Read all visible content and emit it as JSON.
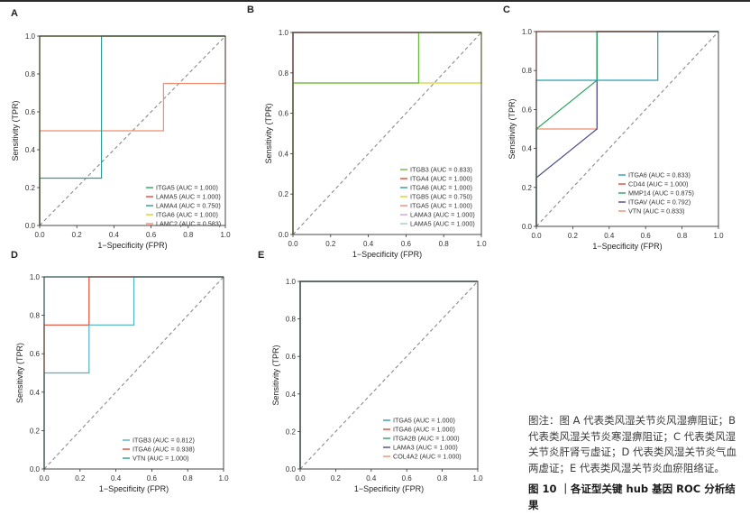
{
  "chart_data": [
    {
      "type": "line",
      "panel_label": "A",
      "xlabel": "1−Specificity (FPR)",
      "ylabel": "Sensitivity (TPR)",
      "xlim": [
        0,
        1
      ],
      "ylim": [
        0,
        1
      ],
      "x_ticks": [
        "0.0",
        "0.2",
        "0.4",
        "0.6",
        "0.8",
        "1.0"
      ],
      "y_ticks": [
        "0.0",
        "0.2",
        "0.4",
        "0.6",
        "0.8",
        "1.0"
      ],
      "reference_line": [
        [
          0,
          0
        ],
        [
          1,
          1
        ]
      ],
      "legend_position": "bottom-right",
      "series": [
        {
          "name": "ITGA5 (AUC = 1.000)",
          "color": "#2ca25f",
          "points": [
            [
              0,
              0
            ],
            [
              0,
              1
            ],
            [
              1,
              1
            ]
          ]
        },
        {
          "name": "LAMA5 (AUC = 1.000)",
          "color": "#e34a33",
          "points": [
            [
              0,
              0
            ],
            [
              0,
              1
            ],
            [
              1,
              1
            ]
          ]
        },
        {
          "name": "LAMA4 (AUC = 0.750)",
          "color": "#2a9d8f",
          "points": [
            [
              0,
              0
            ],
            [
              0,
              0.25
            ],
            [
              0.333,
              0.25
            ],
            [
              0.333,
              1
            ],
            [
              1,
              1
            ]
          ]
        },
        {
          "name": "ITGA6 (AUC = 1.000)",
          "color": "#d4d42a",
          "points": [
            [
              0,
              0
            ],
            [
              0,
              1
            ],
            [
              1,
              1
            ]
          ]
        },
        {
          "name": "LAMC2 (AUC = 0.583)",
          "color": "#f08c70",
          "points": [
            [
              0,
              0
            ],
            [
              0,
              0.5
            ],
            [
              0.667,
              0.5
            ],
            [
              0.667,
              0.75
            ],
            [
              1,
              0.75
            ],
            [
              1,
              1
            ]
          ]
        }
      ]
    },
    {
      "type": "line",
      "panel_label": "B",
      "xlabel": "1−Specificity (FPR)",
      "ylabel": "Sensitivity (TPR)",
      "xlim": [
        0,
        1
      ],
      "ylim": [
        0,
        1
      ],
      "x_ticks": [
        "0.0",
        "0.2",
        "0.4",
        "0.6",
        "0.8",
        "1.0"
      ],
      "y_ticks": [
        "0.0",
        "0.2",
        "0.4",
        "0.6",
        "0.8",
        "1.0"
      ],
      "reference_line": [
        [
          0,
          0
        ],
        [
          1,
          1
        ]
      ],
      "legend_position": "bottom-right",
      "series": [
        {
          "name": "ITGB3 (AUC = 0.833)",
          "color": "#66bb3a",
          "points": [
            [
              0,
              0
            ],
            [
              0,
              0.75
            ],
            [
              0.667,
              0.75
            ],
            [
              0.667,
              1
            ],
            [
              1,
              1
            ]
          ]
        },
        {
          "name": "ITGA4 (AUC = 1.000)",
          "color": "#e34a33",
          "points": [
            [
              0,
              0
            ],
            [
              0,
              1
            ],
            [
              1,
              1
            ]
          ]
        },
        {
          "name": "ITGA6 (AUC = 1.000)",
          "color": "#2a9d8f",
          "points": [
            [
              0,
              0
            ],
            [
              0,
              1
            ],
            [
              1,
              1
            ]
          ]
        },
        {
          "name": "ITGB5 (AUC = 0.750)",
          "color": "#d4d42a",
          "points": [
            [
              0,
              0
            ],
            [
              0,
              0.75
            ],
            [
              1,
              0.75
            ],
            [
              1,
              1
            ]
          ]
        },
        {
          "name": "ITGA5 (AUC = 1.000)",
          "color": "#f08c70",
          "points": [
            [
              0,
              0
            ],
            [
              0,
              1
            ],
            [
              1,
              1
            ]
          ]
        },
        {
          "name": "LAMA3 (AUC = 1.000)",
          "color": "#c9a7d8",
          "points": [
            [
              0,
              0
            ],
            [
              0,
              1
            ],
            [
              1,
              1
            ]
          ]
        },
        {
          "name": "LAMA5 (AUC = 1.000)",
          "color": "#9ecae1",
          "points": [
            [
              0,
              0
            ],
            [
              0,
              1
            ],
            [
              1,
              1
            ]
          ]
        }
      ]
    },
    {
      "type": "line",
      "panel_label": "C",
      "xlabel": "1−Specificity (FPR)",
      "ylabel": "Sensitivity (TPR)",
      "xlim": [
        0,
        1
      ],
      "ylim": [
        0,
        1
      ],
      "x_ticks": [
        "0.0",
        "0.2",
        "0.4",
        "0.6",
        "0.8",
        "1.0"
      ],
      "y_ticks": [
        "0.0",
        "0.2",
        "0.4",
        "0.6",
        "0.8",
        "1.0"
      ],
      "reference_line": [
        [
          0,
          0
        ],
        [
          1,
          1
        ]
      ],
      "legend_position": "bottom-right",
      "series": [
        {
          "name": "ITGA6 (AUC = 0.833)",
          "color": "#2a9fb0",
          "points": [
            [
              0,
              0
            ],
            [
              0,
              0.75
            ],
            [
              0.667,
              0.75
            ],
            [
              0.667,
              1
            ],
            [
              1,
              1
            ]
          ]
        },
        {
          "name": "CD44 (AUC = 1.000)",
          "color": "#e34a33",
          "points": [
            [
              0,
              0
            ],
            [
              0,
              1
            ],
            [
              1,
              1
            ]
          ]
        },
        {
          "name": "MMP14 (AUC = 0.875)",
          "color": "#2ca25f",
          "points": [
            [
              0,
              0
            ],
            [
              0,
              0.5
            ],
            [
              0.333,
              0.75
            ],
            [
              0.333,
              1
            ],
            [
              1,
              1
            ]
          ]
        },
        {
          "name": "ITGAV (AUC = 0.792)",
          "color": "#4a4a8a",
          "points": [
            [
              0,
              0
            ],
            [
              0,
              0.25
            ],
            [
              0.333,
              0.5
            ],
            [
              0.333,
              1
            ],
            [
              1,
              1
            ]
          ]
        },
        {
          "name": "VTN (AUC = 0.833)",
          "color": "#f08c70",
          "points": [
            [
              0,
              0
            ],
            [
              0,
              0.5
            ],
            [
              0.333,
              0.5
            ],
            [
              0.333,
              1
            ],
            [
              1,
              1
            ]
          ]
        }
      ]
    },
    {
      "type": "line",
      "panel_label": "D",
      "xlabel": "1−Specificity (FPR)",
      "ylabel": "Sensitivity (TPR)",
      "xlim": [
        0,
        1
      ],
      "ylim": [
        0,
        1
      ],
      "x_ticks": [
        "0.0",
        "0.2",
        "0.4",
        "0.6",
        "0.8",
        "1.0"
      ],
      "y_ticks": [
        "0.0",
        "0.2",
        "0.4",
        "0.6",
        "0.8",
        "1.0"
      ],
      "reference_line": [
        [
          0,
          0
        ],
        [
          1,
          1
        ]
      ],
      "legend_position": "bottom-right",
      "series": [
        {
          "name": "ITGB3 (AUC = 0.812)",
          "color": "#4db3c4",
          "points": [
            [
              0,
              0
            ],
            [
              0,
              0.5
            ],
            [
              0.25,
              0.5
            ],
            [
              0.25,
              0.75
            ],
            [
              0.5,
              0.75
            ],
            [
              0.5,
              1
            ],
            [
              1,
              1
            ]
          ]
        },
        {
          "name": "ITGA6 (AUC = 0.938)",
          "color": "#e34a33",
          "points": [
            [
              0,
              0
            ],
            [
              0,
              0.75
            ],
            [
              0.25,
              0.75
            ],
            [
              0.25,
              1
            ],
            [
              1,
              1
            ]
          ]
        },
        {
          "name": "VTN (AUC = 1.000)",
          "color": "#2a9d8f",
          "points": [
            [
              0,
              0
            ],
            [
              0,
              1
            ],
            [
              1,
              1
            ]
          ]
        }
      ]
    },
    {
      "type": "line",
      "panel_label": "E",
      "xlabel": "1−Specificity (FPR)",
      "ylabel": "Sensitivity (TPR)",
      "xlim": [
        0,
        1
      ],
      "ylim": [
        0,
        1
      ],
      "x_ticks": [
        "0.0",
        "0.2",
        "0.4",
        "0.6",
        "0.8",
        "1.0"
      ],
      "y_ticks": [
        "0.0",
        "0.2",
        "0.4",
        "0.6",
        "0.8",
        "1.0"
      ],
      "reference_line": [
        [
          0,
          0
        ],
        [
          1,
          1
        ]
      ],
      "legend_position": "bottom-right",
      "series": [
        {
          "name": "ITGA5 (AUC = 1.000)",
          "color": "#2a9fb0",
          "points": [
            [
              0,
              0
            ],
            [
              0,
              1
            ],
            [
              1,
              1
            ]
          ]
        },
        {
          "name": "ITGA6 (AUC = 1.000)",
          "color": "#e34a33",
          "points": [
            [
              0,
              0
            ],
            [
              0,
              1
            ],
            [
              1,
              1
            ]
          ]
        },
        {
          "name": "ITGA2B (AUC = 1.000)",
          "color": "#2ca25f",
          "points": [
            [
              0,
              0
            ],
            [
              0,
              1
            ],
            [
              1,
              1
            ]
          ]
        },
        {
          "name": "LAMA3 (AUC = 1.000)",
          "color": "#4a4a8a",
          "points": [
            [
              0,
              0
            ],
            [
              0,
              1
            ],
            [
              1,
              1
            ]
          ]
        },
        {
          "name": "COL4A2 (AUC = 1.000)",
          "color": "#f08c70",
          "points": [
            [
              0,
              0
            ],
            [
              0,
              1
            ],
            [
              1,
              1
            ]
          ]
        }
      ]
    }
  ],
  "caption": {
    "note": "图注：图 A 代表类风湿关节炎风湿痹阻证；B 代表类风湿关节炎寒湿痹阻证；C 代表类风湿关节炎肝肾亏虚证；D 代表类风湿关节炎气血两虚证；E 代表类风湿关节炎血瘀阻络证。",
    "title": "图 10 ｜各证型关键 hub 基因 ROC 分析结果"
  },
  "colors": {
    "reference_line": "#8a8a8a",
    "frame": "#333333",
    "top_rule": "#2a2a2a"
  }
}
